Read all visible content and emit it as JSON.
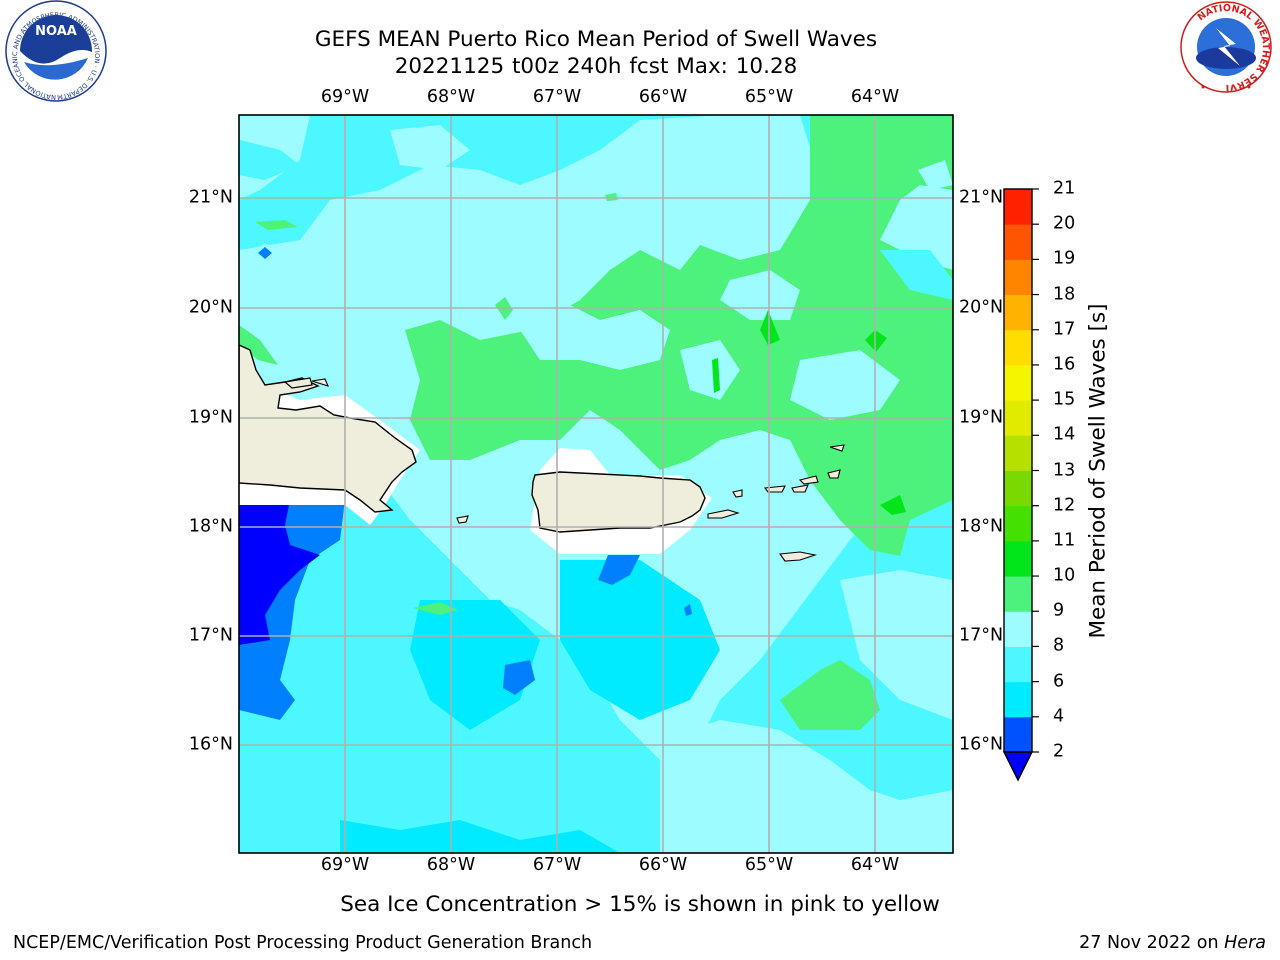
{
  "header": {
    "title_line1": "GEFS MEAN Puerto Rico Mean Period of Swell Waves",
    "title_line2": "20221125 t00z 240h fcst   Max: 10.28"
  },
  "logos": {
    "left": {
      "text": "NOAA",
      "ring_text": "NATIONAL OCEANIC AND ATMOSPHERIC ADMINISTRATION · U.S. DEPARTMENT OF COMMERCE"
    },
    "right": {
      "ring_text": "NATIONAL WEATHER SERVICE"
    }
  },
  "map": {
    "longitude_labels": [
      "69°W",
      "68°W",
      "67°W",
      "66°W",
      "65°W",
      "64°W"
    ],
    "latitude_labels": [
      "21°N",
      "20°N",
      "19°N",
      "18°N",
      "17°N",
      "16°N"
    ]
  },
  "colorbar": {
    "label": "Mean Period of Swell Waves [s]",
    "levels": [
      2,
      4,
      6,
      8,
      9,
      10,
      11,
      12,
      13,
      14,
      15,
      16,
      17,
      18,
      19,
      20,
      21
    ],
    "colors": [
      "#0051ff",
      "#00ebff",
      "#4cf7ff",
      "#9cfcff",
      "#4cf27c",
      "#00e61a",
      "#44e000",
      "#7ad900",
      "#b5e000",
      "#e0eb00",
      "#f5f500",
      "#ffdd00",
      "#ffb300",
      "#ff8500",
      "#ff5400",
      "#ff2200"
    ],
    "under_color": "#0000ff",
    "tick_labels": [
      "2",
      "4",
      "6",
      "8",
      "9",
      "10",
      "11",
      "12",
      "13",
      "14",
      "15",
      "16",
      "17",
      "18",
      "19",
      "20",
      "21"
    ]
  },
  "subtitle": "Sea Ice Concentration > 15% is shown in pink to yellow",
  "footer": {
    "left": "NCEP/EMC/Verification Post Processing Product Generation Branch",
    "right_prefix": "27 Nov 2022 on ",
    "right_host": "Hera"
  }
}
